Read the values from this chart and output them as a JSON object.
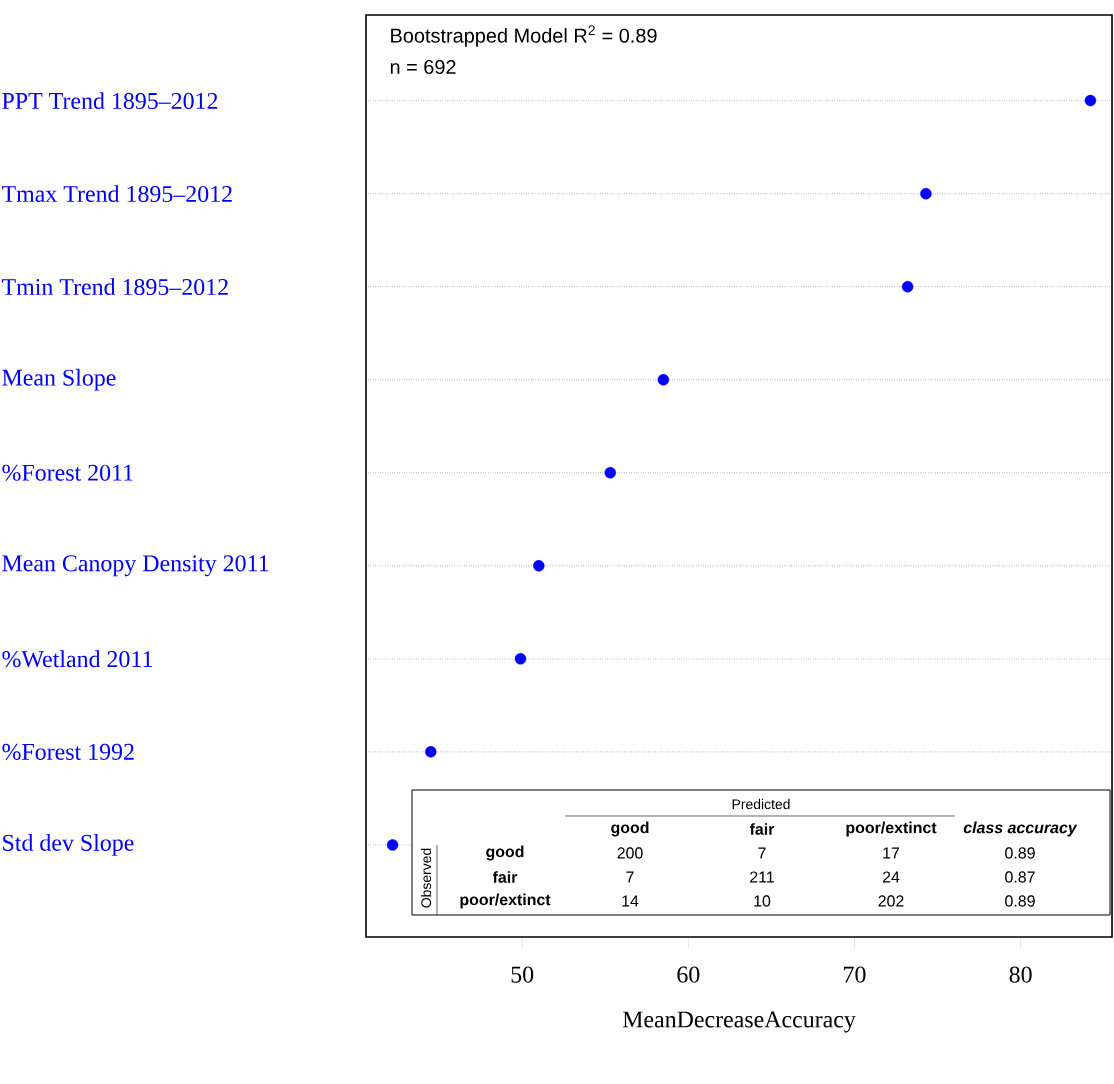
{
  "chart_data": {
    "type": "scatter",
    "orientation": "horizontal",
    "xlabel": "MeanDecreaseAccuracy",
    "categories": [
      "PPT Trend 1895–2012",
      "Tmax Trend 1895–2012",
      "Tmin Trend 1895–2012",
      "Mean Slope",
      "%Forest 2011",
      "Mean Canopy Density 2011",
      "%Wetland 2011",
      "%Forest 1992",
      "Std dev Slope"
    ],
    "values": [
      84.2,
      74.3,
      73.2,
      58.5,
      55.3,
      51.0,
      49.9,
      44.5,
      42.2
    ],
    "color": "#0000ff",
    "marker": "circle",
    "grid": "y",
    "xlim": [
      40.6,
      85.5
    ],
    "xticks": [
      50,
      60,
      70,
      80
    ],
    "annotations": [
      "Bootstrapped Model R$^{2}$ = 0.89",
      "n = 692",
      "Predicted",
      "good",
      "fair",
      "poor/extinct",
      "class accuracy",
      "Observed",
      "good",
      "200",
      "7",
      "17",
      "0.89",
      "fair",
      "7",
      "211",
      "24",
      "0.87",
      "poor/extinct",
      "14",
      "10",
      "202",
      "0.89"
    ]
  }
}
